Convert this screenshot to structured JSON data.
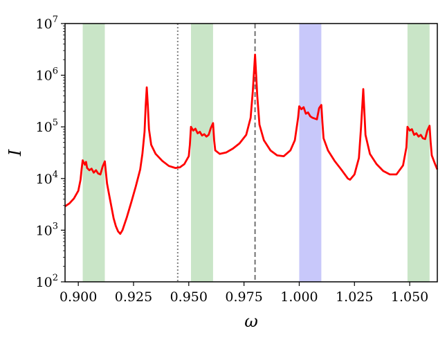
{
  "chart_data": {
    "type": "line",
    "title": "",
    "xlabel": "ω",
    "ylabel": "I",
    "yscale": "log",
    "xlim": [
      0.894,
      1.0625
    ],
    "ylim": [
      100,
      10000000
    ],
    "grid": false,
    "x_ticks": [
      0.9,
      0.925,
      0.95,
      0.975,
      1.0,
      1.025,
      1.05
    ],
    "x_tick_labels": [
      "0.900",
      "0.925",
      "0.950",
      "0.975",
      "1.000",
      "1.025",
      "1.050"
    ],
    "y_ticks": [
      {
        "value": 100,
        "base": "10",
        "exp": "2"
      },
      {
        "value": 1000,
        "base": "10",
        "exp": "3"
      },
      {
        "value": 10000,
        "base": "10",
        "exp": "4"
      },
      {
        "value": 100000,
        "base": "10",
        "exp": "5"
      },
      {
        "value": 1000000,
        "base": "10",
        "exp": "6"
      },
      {
        "value": 10000000,
        "base": "10",
        "exp": "7"
      }
    ],
    "bands": [
      {
        "x0": 0.902,
        "x1": 0.912,
        "color": "#c9e5c7"
      },
      {
        "x0": 0.951,
        "x1": 0.961,
        "color": "#c9e5c7"
      },
      {
        "x0": 1.0,
        "x1": 1.01,
        "color": "#c8c8fa"
      },
      {
        "x0": 1.049,
        "x1": 1.059,
        "color": "#c9e5c7"
      }
    ],
    "vlines": [
      {
        "x": 0.945,
        "style": "dotted",
        "color": "#808080"
      },
      {
        "x": 0.98,
        "style": "dashed",
        "color": "#707070"
      }
    ],
    "series": [
      {
        "color": "#ff0000",
        "points": [
          [
            0.894,
            2900
          ],
          [
            0.896,
            3300
          ],
          [
            0.898,
            4100
          ],
          [
            0.9,
            5800
          ],
          [
            0.901,
            9500
          ],
          [
            0.9015,
            15000
          ],
          [
            0.902,
            22500
          ],
          [
            0.903,
            18500
          ],
          [
            0.9035,
            21000
          ],
          [
            0.904,
            16000
          ],
          [
            0.905,
            14500
          ],
          [
            0.906,
            15500
          ],
          [
            0.907,
            13000
          ],
          [
            0.908,
            14500
          ],
          [
            0.909,
            12500
          ],
          [
            0.91,
            12000
          ],
          [
            0.911,
            17000
          ],
          [
            0.912,
            21500
          ],
          [
            0.9125,
            13000
          ],
          [
            0.913,
            8000
          ],
          [
            0.914,
            4700
          ],
          [
            0.915,
            2800
          ],
          [
            0.916,
            1700
          ],
          [
            0.917,
            1200
          ],
          [
            0.918,
            950
          ],
          [
            0.919,
            850
          ],
          [
            0.92,
            1000
          ],
          [
            0.922,
            1800
          ],
          [
            0.924,
            3500
          ],
          [
            0.926,
            7000
          ],
          [
            0.928,
            15000
          ],
          [
            0.929,
            30000
          ],
          [
            0.93,
            80000
          ],
          [
            0.9305,
            250000
          ],
          [
            0.931,
            580000
          ],
          [
            0.9315,
            250000
          ],
          [
            0.932,
            90000
          ],
          [
            0.933,
            45000
          ],
          [
            0.935,
            30000
          ],
          [
            0.938,
            22000
          ],
          [
            0.941,
            17500
          ],
          [
            0.944,
            16000
          ],
          [
            0.946,
            16500
          ],
          [
            0.948,
            19000
          ],
          [
            0.95,
            27000
          ],
          [
            0.9505,
            45000
          ],
          [
            0.951,
            100000
          ],
          [
            0.952,
            85000
          ],
          [
            0.953,
            92000
          ],
          [
            0.954,
            75000
          ],
          [
            0.955,
            80000
          ],
          [
            0.956,
            68000
          ],
          [
            0.957,
            72000
          ],
          [
            0.958,
            65000
          ],
          [
            0.959,
            70000
          ],
          [
            0.96,
            95000
          ],
          [
            0.961,
            118000
          ],
          [
            0.9615,
            55000
          ],
          [
            0.962,
            35000
          ],
          [
            0.964,
            30000
          ],
          [
            0.967,
            32000
          ],
          [
            0.97,
            38000
          ],
          [
            0.973,
            48000
          ],
          [
            0.976,
            70000
          ],
          [
            0.978,
            150000
          ],
          [
            0.979,
            500000
          ],
          [
            0.98,
            2500000
          ],
          [
            0.981,
            400000
          ],
          [
            0.982,
            110000
          ],
          [
            0.984,
            55000
          ],
          [
            0.987,
            35000
          ],
          [
            0.99,
            28000
          ],
          [
            0.993,
            27000
          ],
          [
            0.996,
            35000
          ],
          [
            0.998,
            55000
          ],
          [
            0.9995,
            150000
          ],
          [
            1.0,
            250000
          ],
          [
            1.001,
            220000
          ],
          [
            1.002,
            240000
          ],
          [
            1.003,
            180000
          ],
          [
            1.004,
            190000
          ],
          [
            1.005,
            160000
          ],
          [
            1.006,
            150000
          ],
          [
            1.007,
            145000
          ],
          [
            1.008,
            140000
          ],
          [
            1.009,
            230000
          ],
          [
            1.01,
            265000
          ],
          [
            1.0105,
            120000
          ],
          [
            1.011,
            60000
          ],
          [
            1.013,
            35000
          ],
          [
            1.016,
            22000
          ],
          [
            1.019,
            15000
          ],
          [
            1.022,
            10000
          ],
          [
            1.023,
            9500
          ],
          [
            1.025,
            12000
          ],
          [
            1.027,
            25000
          ],
          [
            1.028,
            100000
          ],
          [
            1.029,
            540000
          ],
          [
            1.03,
            70000
          ],
          [
            1.032,
            30000
          ],
          [
            1.035,
            19000
          ],
          [
            1.038,
            14000
          ],
          [
            1.041,
            12000
          ],
          [
            1.044,
            12000
          ],
          [
            1.047,
            18000
          ],
          [
            1.0485,
            40000
          ],
          [
            1.049,
            100000
          ],
          [
            1.05,
            85000
          ],
          [
            1.051,
            90000
          ],
          [
            1.052,
            70000
          ],
          [
            1.053,
            75000
          ],
          [
            1.054,
            65000
          ],
          [
            1.055,
            70000
          ],
          [
            1.056,
            60000
          ],
          [
            1.057,
            58000
          ],
          [
            1.058,
            85000
          ],
          [
            1.059,
            105000
          ],
          [
            1.0595,
            50000
          ],
          [
            1.06,
            28000
          ],
          [
            1.0615,
            19000
          ],
          [
            1.0625,
            15000
          ]
        ]
      }
    ]
  }
}
